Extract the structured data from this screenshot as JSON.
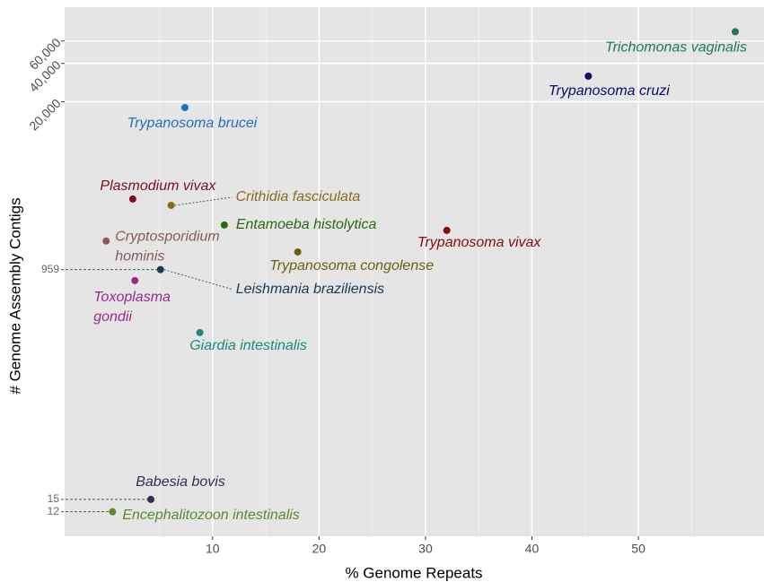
{
  "chart_data": {
    "type": "scatter",
    "xlabel": "% Genome Repeats",
    "ylabel": "# Genome Assembly Contigs",
    "xlim": [
      -3.9,
      61.8
    ],
    "xticks": [
      10,
      20,
      30,
      40,
      50
    ],
    "xminor": [
      5,
      15,
      25,
      35,
      45,
      55
    ],
    "ylim": [
      7.7,
      110700
    ],
    "yscale": "log",
    "yticks": [
      {
        "value": 20000,
        "label": "20,000"
      },
      {
        "value": 40000,
        "label": "40,000"
      },
      {
        "value": 60000,
        "label": "60,000"
      }
    ],
    "highlight_yticks": [
      959,
      15,
      12
    ],
    "grid": true,
    "points": [
      {
        "name": "Trichomonas vaginalis",
        "color": "#1a7a5a",
        "x": 59.1,
        "y": 71000
      },
      {
        "name": "Trypanosoma cruzi",
        "color": "#0a0a6e",
        "x": 45.3,
        "y": 31800
      },
      {
        "name": "Trypanosoma brucei",
        "color": "#1f6fbf",
        "x": 7.4,
        "y": 18000
      },
      {
        "name": "Plasmodium vivax",
        "color": "#7a1020",
        "x": 2.5,
        "y": 3440
      },
      {
        "name": "Crithidia fasciculata",
        "color": "#8a6a1a",
        "x": 6.1,
        "y": 3070
      },
      {
        "name": "Entamoeba histolytica",
        "color": "#2a6a10",
        "x": 11.1,
        "y": 2150
      },
      {
        "name": "Cryptosporidium hominis",
        "color": "#8a5a5a",
        "x": 0,
        "y": 1610
      },
      {
        "name": "Trypanosoma vivax",
        "color": "#8a0a0a",
        "x": 32.0,
        "y": 1950
      },
      {
        "name": "Trypanosoma congolense",
        "color": "#6a6010",
        "x": 18.0,
        "y": 1320
      },
      {
        "name": "Leishmania braziliensis",
        "color": "#153a5a",
        "x": 5.1,
        "y": 959
      },
      {
        "name": "Toxoplasma gondii",
        "color": "#9a2a8a",
        "x": 2.7,
        "y": 787
      },
      {
        "name": "Giardia intestinalis",
        "color": "#1a8a7a",
        "x": 8.8,
        "y": 307
      },
      {
        "name": "Babesia bovis",
        "color": "#3a2a5a",
        "x": 4.2,
        "y": 15
      },
      {
        "name": "Encephalitozoon intestinalis",
        "color": "#5a8a2a",
        "x": 0.6,
        "y": 12
      }
    ]
  }
}
